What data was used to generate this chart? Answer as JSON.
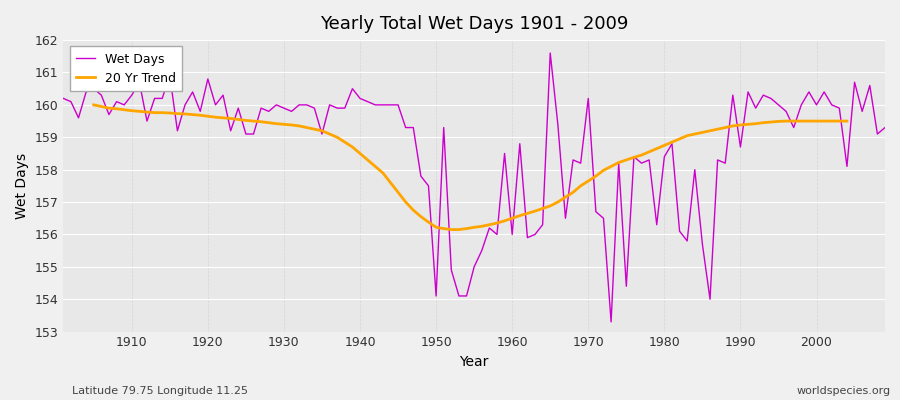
{
  "title": "Yearly Total Wet Days 1901 - 2009",
  "xlabel": "Year",
  "ylabel": "Wet Days",
  "footnote_left": "Latitude 79.75 Longitude 11.25",
  "footnote_right": "worldspecies.org",
  "ylim": [
    153,
    162
  ],
  "yticks": [
    153,
    154,
    155,
    156,
    157,
    158,
    159,
    160,
    161,
    162
  ],
  "xlim": [
    1901,
    2009
  ],
  "wet_days_color": "#cc00cc",
  "trend_color": "#ffa500",
  "legend_labels": [
    "Wet Days",
    "20 Yr Trend"
  ],
  "years": [
    1901,
    1902,
    1903,
    1904,
    1905,
    1906,
    1907,
    1908,
    1909,
    1910,
    1911,
    1912,
    1913,
    1914,
    1915,
    1916,
    1917,
    1918,
    1919,
    1920,
    1921,
    1922,
    1923,
    1924,
    1925,
    1926,
    1927,
    1928,
    1929,
    1930,
    1931,
    1932,
    1933,
    1934,
    1935,
    1936,
    1937,
    1938,
    1939,
    1940,
    1941,
    1942,
    1943,
    1944,
    1945,
    1946,
    1947,
    1948,
    1949,
    1950,
    1951,
    1952,
    1953,
    1954,
    1955,
    1956,
    1957,
    1958,
    1959,
    1960,
    1961,
    1962,
    1963,
    1964,
    1965,
    1966,
    1967,
    1968,
    1969,
    1970,
    1971,
    1972,
    1973,
    1974,
    1975,
    1976,
    1977,
    1978,
    1979,
    1980,
    1981,
    1982,
    1983,
    1984,
    1985,
    1986,
    1987,
    1988,
    1989,
    1990,
    1991,
    1992,
    1993,
    1994,
    1995,
    1996,
    1997,
    1998,
    1999,
    2000,
    2001,
    2002,
    2003,
    2004,
    2005,
    2006,
    2007,
    2008,
    2009
  ],
  "wet_days": [
    160.2,
    160.1,
    159.6,
    160.4,
    160.5,
    160.3,
    159.7,
    160.1,
    160.0,
    160.3,
    160.7,
    159.5,
    160.2,
    160.2,
    160.9,
    159.2,
    160.0,
    160.4,
    159.8,
    160.8,
    160.0,
    160.3,
    159.2,
    159.9,
    159.1,
    159.1,
    159.9,
    159.8,
    160.0,
    159.9,
    159.8,
    160.0,
    160.0,
    159.9,
    159.1,
    160.0,
    159.9,
    159.9,
    160.5,
    160.2,
    160.1,
    160.0,
    160.0,
    160.0,
    160.0,
    159.3,
    159.3,
    157.8,
    157.5,
    154.1,
    159.3,
    154.9,
    154.1,
    154.1,
    155.0,
    155.5,
    156.2,
    156.0,
    158.5,
    156.0,
    158.8,
    155.9,
    156.0,
    156.3,
    161.6,
    159.4,
    156.5,
    158.3,
    158.2,
    160.2,
    156.7,
    156.5,
    153.3,
    158.2,
    154.4,
    158.4,
    158.2,
    158.3,
    156.3,
    158.4,
    158.8,
    156.1,
    155.8,
    158.0,
    155.7,
    154.0,
    158.3,
    158.2,
    160.3,
    158.7,
    160.4,
    159.9,
    160.3,
    160.2,
    160.0,
    159.8,
    159.3,
    160.0,
    160.4,
    160.0,
    160.4,
    160.0,
    159.9,
    158.1,
    160.7,
    159.8,
    160.6,
    159.1,
    159.3
  ],
  "trend_years": [
    1905,
    1906,
    1907,
    1908,
    1909,
    1910,
    1911,
    1912,
    1913,
    1914,
    1915,
    1916,
    1917,
    1918,
    1919,
    1920,
    1921,
    1922,
    1923,
    1924,
    1925,
    1926,
    1927,
    1928,
    1929,
    1930,
    1931,
    1932,
    1933,
    1934,
    1935,
    1936,
    1937,
    1938,
    1939,
    1940,
    1941,
    1942,
    1943,
    1944,
    1945,
    1946,
    1947,
    1948,
    1949,
    1950,
    1951,
    1952,
    1953,
    1954,
    1955,
    1956,
    1957,
    1958,
    1959,
    1960,
    1961,
    1962,
    1963,
    1964,
    1965,
    1966,
    1967,
    1968,
    1969,
    1970,
    1971,
    1972,
    1973,
    1974,
    1975,
    1976,
    1977,
    1978,
    1979,
    1980,
    1981,
    1982,
    1983,
    1984,
    1985,
    1986,
    1987,
    1988,
    1989,
    1990,
    1991,
    1992,
    1993,
    1994,
    1995,
    1996,
    1997,
    1998,
    1999,
    2000,
    2001,
    2002,
    2003,
    2004
  ],
  "trend": [
    160.0,
    159.95,
    159.9,
    159.88,
    159.85,
    159.82,
    159.8,
    159.78,
    159.76,
    159.76,
    159.75,
    159.73,
    159.72,
    159.7,
    159.68,
    159.65,
    159.62,
    159.6,
    159.58,
    159.55,
    159.52,
    159.5,
    159.48,
    159.45,
    159.42,
    159.4,
    159.38,
    159.35,
    159.3,
    159.25,
    159.2,
    159.1,
    159.0,
    158.85,
    158.7,
    158.5,
    158.3,
    158.1,
    157.9,
    157.6,
    157.3,
    157.0,
    156.75,
    156.55,
    156.38,
    156.22,
    156.18,
    156.15,
    156.15,
    156.18,
    156.22,
    156.25,
    156.3,
    156.35,
    156.42,
    156.5,
    156.58,
    156.65,
    156.72,
    156.8,
    156.88,
    157.0,
    157.15,
    157.3,
    157.5,
    157.65,
    157.8,
    157.98,
    158.1,
    158.22,
    158.3,
    158.38,
    158.45,
    158.55,
    158.65,
    158.75,
    158.85,
    158.95,
    159.05,
    159.1,
    159.15,
    159.2,
    159.25,
    159.3,
    159.35,
    159.38,
    159.4,
    159.42,
    159.45,
    159.47,
    159.49,
    159.5,
    159.5,
    159.5,
    159.5,
    159.5,
    159.5,
    159.5,
    159.5,
    159.5
  ]
}
